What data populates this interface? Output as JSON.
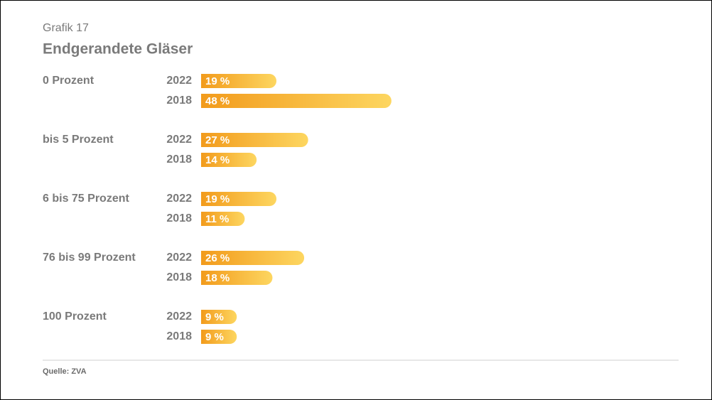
{
  "chart_data": {
    "type": "bar",
    "orientation": "horizontal",
    "subtitle": "Grafik 17",
    "title": "Endgerandete Gläser",
    "categories": [
      "0 Prozent",
      "bis 5 Prozent",
      "6 bis 75 Prozent",
      "76 bis 99 Prozent",
      "100 Prozent"
    ],
    "series": [
      {
        "name": "2022",
        "color": "#f29b1c",
        "values": [
          19,
          27,
          19,
          26,
          9
        ],
        "value_labels": [
          "19 %",
          "27 %",
          "19 %",
          "26 %",
          "9 %"
        ]
      },
      {
        "name": "2018",
        "color": "#f29b1c",
        "values": [
          48,
          14,
          11,
          18,
          9
        ],
        "value_labels": [
          "48 %",
          "14 %",
          "11 %",
          "18 %",
          "9 %"
        ]
      }
    ],
    "gradient_end": "#fdd660",
    "source": "Quelle: ZVA"
  }
}
